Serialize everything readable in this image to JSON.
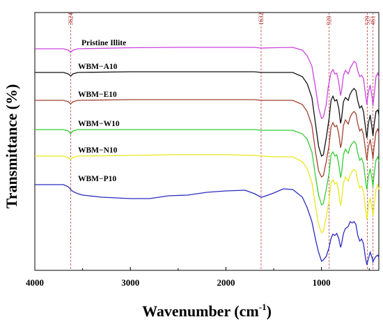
{
  "chart_data": {
    "type": "line",
    "xlabel_main": "Wavenumber (cm",
    "xlabel_sup": "-1",
    "xlabel_close": ")",
    "ylabel": "Transmittance (%)",
    "x_reversed": true,
    "xlim": [
      4000,
      400
    ],
    "xticks": [
      4000,
      3000,
      2000,
      1000
    ],
    "grid": false,
    "peak_lines": [
      3624,
      1632,
      920,
      520,
      461
    ],
    "peak_line_color": "#c0504d",
    "series": [
      {
        "name": "Pristine Illite",
        "color": "#cc44dd",
        "points": [
          [
            4000,
            70
          ],
          [
            3700,
            70
          ],
          [
            3650,
            72
          ],
          [
            3624,
            75
          ],
          [
            3600,
            72
          ],
          [
            3550,
            70
          ],
          [
            3000,
            68.5
          ],
          [
            2500,
            68
          ],
          [
            2000,
            68
          ],
          [
            1700,
            68
          ],
          [
            1632,
            69
          ],
          [
            1500,
            68.5
          ],
          [
            1300,
            68
          ],
          [
            1200,
            72
          ],
          [
            1150,
            80
          ],
          [
            1100,
            95
          ],
          [
            1060,
            128
          ],
          [
            1030,
            155
          ],
          [
            1000,
            170
          ],
          [
            980,
            168
          ],
          [
            950,
            150
          ],
          [
            930,
            125
          ],
          [
            900,
            104
          ],
          [
            880,
            100
          ],
          [
            860,
            106
          ],
          [
            840,
            105
          ],
          [
            820,
            118
          ],
          [
            800,
            137
          ],
          [
            790,
            130
          ],
          [
            770,
            108
          ],
          [
            750,
            101
          ],
          [
            720,
            106
          ],
          [
            700,
            98
          ],
          [
            680,
            93
          ],
          [
            660,
            88
          ],
          [
            640,
            90
          ],
          [
            620,
            102
          ],
          [
            600,
            110
          ],
          [
            580,
            108
          ],
          [
            560,
            113
          ],
          [
            540,
            135
          ],
          [
            525,
            150
          ],
          [
            510,
            133
          ],
          [
            490,
            122
          ],
          [
            470,
            140
          ],
          [
            461,
            152
          ],
          [
            450,
            138
          ],
          [
            430,
            110
          ],
          [
            410,
            105
          ],
          [
            400,
            112
          ]
        ]
      },
      {
        "name": "WBM−A10",
        "color": "#111111",
        "points": [
          [
            4000,
            104
          ],
          [
            3700,
            104
          ],
          [
            3650,
            106
          ],
          [
            3624,
            109
          ],
          [
            3600,
            106
          ],
          [
            3550,
            104
          ],
          [
            3000,
            103
          ],
          [
            2500,
            103
          ],
          [
            2000,
            103
          ],
          [
            1700,
            103
          ],
          [
            1632,
            104
          ],
          [
            1500,
            104
          ],
          [
            1300,
            104
          ],
          [
            1200,
            110
          ],
          [
            1150,
            120
          ],
          [
            1100,
            140
          ],
          [
            1060,
            180
          ],
          [
            1030,
            210
          ],
          [
            1000,
            224
          ],
          [
            980,
            222
          ],
          [
            950,
            198
          ],
          [
            920,
            170
          ],
          [
            900,
            144
          ],
          [
            880,
            138
          ],
          [
            860,
            145
          ],
          [
            840,
            143
          ],
          [
            820,
            155
          ],
          [
            800,
            177
          ],
          [
            790,
            170
          ],
          [
            770,
            146
          ],
          [
            750,
            140
          ],
          [
            720,
            144
          ],
          [
            700,
            135
          ],
          [
            680,
            130
          ],
          [
            660,
            127
          ],
          [
            640,
            130
          ],
          [
            620,
            145
          ],
          [
            600,
            155
          ],
          [
            580,
            152
          ],
          [
            560,
            160
          ],
          [
            540,
            183
          ],
          [
            525,
            198
          ],
          [
            510,
            178
          ],
          [
            490,
            165
          ],
          [
            470,
            185
          ],
          [
            461,
            195
          ],
          [
            450,
            180
          ],
          [
            430,
            160
          ],
          [
            410,
            158
          ],
          [
            400,
            165
          ]
        ]
      },
      {
        "name": "WBM−E10",
        "color": "#a04030",
        "points": [
          [
            4000,
            144
          ],
          [
            3700,
            144
          ],
          [
            3650,
            146
          ],
          [
            3624,
            149
          ],
          [
            3600,
            146
          ],
          [
            3550,
            144
          ],
          [
            3000,
            143
          ],
          [
            2500,
            143
          ],
          [
            2000,
            143
          ],
          [
            1700,
            143
          ],
          [
            1632,
            144
          ],
          [
            1500,
            144
          ],
          [
            1300,
            144
          ],
          [
            1200,
            150
          ],
          [
            1150,
            160
          ],
          [
            1100,
            180
          ],
          [
            1060,
            220
          ],
          [
            1030,
            245
          ],
          [
            1000,
            254
          ],
          [
            980,
            252
          ],
          [
            950,
            232
          ],
          [
            920,
            208
          ],
          [
            900,
            182
          ],
          [
            880,
            176
          ],
          [
            860,
            182
          ],
          [
            840,
            180
          ],
          [
            820,
            192
          ],
          [
            800,
            212
          ],
          [
            790,
            206
          ],
          [
            770,
            180
          ],
          [
            750,
            172
          ],
          [
            720,
            178
          ],
          [
            700,
            168
          ],
          [
            680,
            163
          ],
          [
            660,
            160
          ],
          [
            640,
            163
          ],
          [
            620,
            178
          ],
          [
            600,
            188
          ],
          [
            580,
            185
          ],
          [
            560,
            193
          ],
          [
            540,
            215
          ],
          [
            525,
            230
          ],
          [
            510,
            212
          ],
          [
            490,
            200
          ],
          [
            470,
            218
          ],
          [
            461,
            228
          ],
          [
            450,
            212
          ],
          [
            430,
            190
          ],
          [
            410,
            185
          ],
          [
            400,
            192
          ]
        ]
      },
      {
        "name": "WBM−W10",
        "color": "#33cc33",
        "points": [
          [
            4000,
            186
          ],
          [
            3700,
            186
          ],
          [
            3650,
            188
          ],
          [
            3624,
            192
          ],
          [
            3600,
            188
          ],
          [
            3550,
            186
          ],
          [
            3000,
            186
          ],
          [
            2500,
            186
          ],
          [
            2000,
            186
          ],
          [
            1700,
            186
          ],
          [
            1632,
            187
          ],
          [
            1500,
            187
          ],
          [
            1300,
            187
          ],
          [
            1200,
            192
          ],
          [
            1150,
            200
          ],
          [
            1100,
            218
          ],
          [
            1060,
            255
          ],
          [
            1030,
            280
          ],
          [
            1000,
            294
          ],
          [
            980,
            292
          ],
          [
            950,
            272
          ],
          [
            920,
            248
          ],
          [
            900,
            222
          ],
          [
            880,
            218
          ],
          [
            860,
            224
          ],
          [
            840,
            222
          ],
          [
            820,
            235
          ],
          [
            800,
            255
          ],
          [
            790,
            248
          ],
          [
            770,
            222
          ],
          [
            750,
            214
          ],
          [
            720,
            220
          ],
          [
            700,
            211
          ],
          [
            680,
            206
          ],
          [
            660,
            203
          ],
          [
            640,
            206
          ],
          [
            620,
            220
          ],
          [
            600,
            230
          ],
          [
            580,
            227
          ],
          [
            560,
            235
          ],
          [
            540,
            258
          ],
          [
            525,
            272
          ],
          [
            510,
            254
          ],
          [
            490,
            242
          ],
          [
            470,
            258
          ],
          [
            461,
            268
          ],
          [
            450,
            252
          ],
          [
            430,
            230
          ],
          [
            410,
            225
          ],
          [
            400,
            232
          ]
        ]
      },
      {
        "name": "WBM−N10",
        "color": "#e8e820",
        "points": [
          [
            4000,
            224
          ],
          [
            3700,
            224
          ],
          [
            3650,
            226
          ],
          [
            3624,
            229
          ],
          [
            3600,
            226
          ],
          [
            3550,
            224
          ],
          [
            3000,
            223
          ],
          [
            2500,
            222
          ],
          [
            2000,
            222
          ],
          [
            1700,
            223
          ],
          [
            1632,
            224
          ],
          [
            1500,
            225
          ],
          [
            1300,
            225
          ],
          [
            1200,
            232
          ],
          [
            1150,
            242
          ],
          [
            1100,
            262
          ],
          [
            1060,
            298
          ],
          [
            1030,
            322
          ],
          [
            1000,
            334
          ],
          [
            980,
            332
          ],
          [
            950,
            312
          ],
          [
            920,
            288
          ],
          [
            900,
            262
          ],
          [
            880,
            258
          ],
          [
            860,
            264
          ],
          [
            840,
            262
          ],
          [
            820,
            275
          ],
          [
            800,
            295
          ],
          [
            790,
            288
          ],
          [
            770,
            262
          ],
          [
            750,
            254
          ],
          [
            720,
            260
          ],
          [
            700,
            251
          ],
          [
            680,
            246
          ],
          [
            660,
            243
          ],
          [
            640,
            246
          ],
          [
            620,
            260
          ],
          [
            600,
            270
          ],
          [
            580,
            267
          ],
          [
            560,
            275
          ],
          [
            540,
            300
          ],
          [
            525,
            315
          ],
          [
            510,
            296
          ],
          [
            490,
            284
          ],
          [
            470,
            300
          ],
          [
            461,
            310
          ],
          [
            450,
            296
          ],
          [
            430,
            272
          ],
          [
            410,
            265
          ],
          [
            400,
            272
          ]
        ]
      },
      {
        "name": "WBM−P10",
        "color": "#2a2abf",
        "points": [
          [
            4000,
            265
          ],
          [
            3700,
            265
          ],
          [
            3650,
            268
          ],
          [
            3624,
            272
          ],
          [
            3600,
            275
          ],
          [
            3550,
            278
          ],
          [
            3500,
            280
          ],
          [
            3300,
            283
          ],
          [
            3000,
            285
          ],
          [
            2800,
            285
          ],
          [
            2600,
            281
          ],
          [
            2400,
            280
          ],
          [
            2200,
            276
          ],
          [
            2000,
            274
          ],
          [
            1800,
            273
          ],
          [
            1700,
            278
          ],
          [
            1632,
            283
          ],
          [
            1600,
            282
          ],
          [
            1500,
            277
          ],
          [
            1400,
            271
          ],
          [
            1300,
            272
          ],
          [
            1200,
            283
          ],
          [
            1150,
            298
          ],
          [
            1100,
            318
          ],
          [
            1060,
            345
          ],
          [
            1030,
            362
          ],
          [
            1000,
            375
          ],
          [
            980,
            373
          ],
          [
            950,
            368
          ],
          [
            920,
            355
          ],
          [
            900,
            342
          ],
          [
            880,
            336
          ],
          [
            860,
            338
          ],
          [
            840,
            335
          ],
          [
            820,
            342
          ],
          [
            800,
            355
          ],
          [
            790,
            350
          ],
          [
            770,
            335
          ],
          [
            750,
            328
          ],
          [
            720,
            325
          ],
          [
            700,
            318
          ],
          [
            680,
            320
          ],
          [
            660,
            318
          ],
          [
            640,
            322
          ],
          [
            620,
            338
          ],
          [
            600,
            346
          ],
          [
            580,
            343
          ],
          [
            560,
            350
          ],
          [
            540,
            370
          ],
          [
            525,
            380
          ],
          [
            510,
            372
          ],
          [
            490,
            362
          ],
          [
            470,
            370
          ],
          [
            461,
            376
          ],
          [
            450,
            372
          ],
          [
            430,
            368
          ],
          [
            410,
            366
          ],
          [
            400,
            370
          ]
        ]
      }
    ],
    "ylim": [
      0,
      380
    ]
  }
}
